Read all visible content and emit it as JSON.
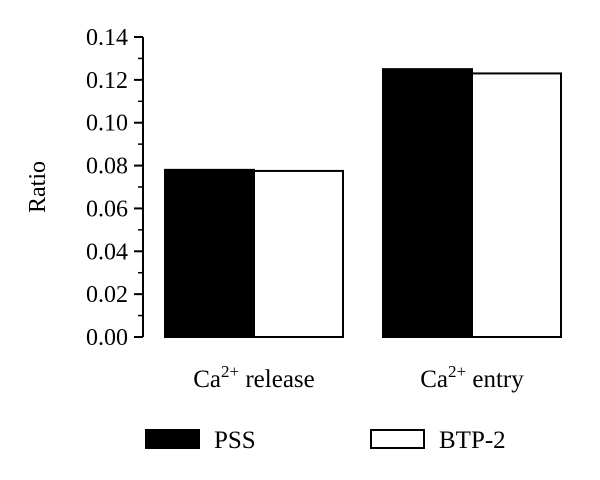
{
  "chart_data": {
    "type": "bar",
    "categories": [
      {
        "base": "Ca",
        "sup": "2+",
        "rest": " release"
      },
      {
        "base": "Ca",
        "sup": "2+",
        "rest": " entry"
      }
    ],
    "series": [
      {
        "name": "PSS",
        "values": [
          0.078,
          0.125
        ],
        "color": "#000000"
      },
      {
        "name": "BTP-2",
        "values": [
          0.0775,
          0.123
        ],
        "color": "#ffffff"
      }
    ],
    "ylabel": "Ratio",
    "ylim": [
      0,
      0.14
    ],
    "yticks": [
      "0.00",
      "0.02",
      "0.04",
      "0.06",
      "0.08",
      "0.10",
      "0.12",
      "0.14"
    ],
    "minor_ticks": true,
    "grid": false,
    "legend_position": "bottom"
  }
}
